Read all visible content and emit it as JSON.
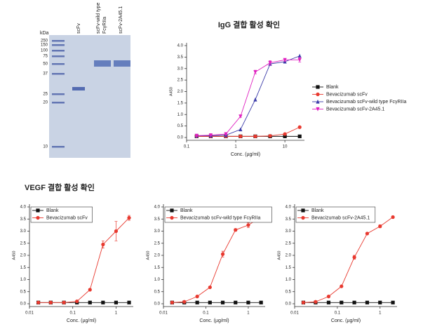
{
  "section_title": "VEGF 결합 활성 확인",
  "gel": {
    "unit": "kDa",
    "markers": [
      250,
      150,
      100,
      75,
      50,
      37,
      25,
      20,
      10
    ],
    "lanes": [
      [
        "scFv"
      ],
      [
        "scFv-wild type",
        "FcγRIIa"
      ],
      [
        "scFv-2A45.1"
      ]
    ]
  },
  "chart_data": [
    {
      "type": "line",
      "title": "IgG 결합 활성 확인",
      "x_label": "Conc. (µg/ml)",
      "y_label": "A450",
      "xscale": "log",
      "xlim": [
        0.1,
        25
      ],
      "ylim": [
        0,
        4
      ],
      "xticks": [
        0.1,
        1,
        10
      ],
      "yticks": [
        {
          "value": 0,
          "label": "0.0"
        },
        {
          "value": 0.5,
          "label": "0.5"
        },
        {
          "value": 1,
          "label": "1.0"
        },
        {
          "value": 1.5,
          "label": "1.5"
        },
        {
          "value": 2,
          "label": "2.0"
        },
        {
          "value": 2.5,
          "label": "2.5"
        },
        {
          "value": 3,
          "label": "3.0"
        },
        {
          "value": 3.5,
          "label": "3.5"
        },
        {
          "value": 4,
          "label": "4.0"
        }
      ],
      "legend": "right",
      "x": [
        0.16,
        0.31,
        0.63,
        1.25,
        2.5,
        5,
        10,
        20
      ],
      "series": [
        {
          "name": "Blank",
          "color": "#111111",
          "marker": "square",
          "values": [
            0.05,
            0.05,
            0.05,
            0.05,
            0.05,
            0.05,
            0.05,
            0.05
          ]
        },
        {
          "name": "Bevacizumab scFv",
          "color": "#e8392f",
          "marker": "circle",
          "values": [
            0.05,
            0.05,
            0.05,
            0.05,
            0.05,
            0.07,
            0.15,
            0.45
          ]
        },
        {
          "name": "Bevacizumab scFv-wild type FcγRIIa",
          "color": "#3a3aa8",
          "marker": "triangle-up",
          "values": [
            0.07,
            0.08,
            0.1,
            0.35,
            1.65,
            3.2,
            3.3,
            3.55
          ]
        },
        {
          "name": "Bevacizumab scFv-2A45.1",
          "color": "#e020c0",
          "marker": "triangle-down",
          "values": [
            0.08,
            0.1,
            0.15,
            0.92,
            2.85,
            3.25,
            3.38,
            3.38
          ],
          "errors": [
            0.02,
            0.02,
            0.02,
            0.04,
            0.08,
            0.1,
            0.06,
            0.1
          ]
        }
      ]
    },
    {
      "type": "line",
      "x_label": "Conc. (µg/ml)",
      "y_label": "A450",
      "xscale": "log",
      "xlim": [
        0.01,
        2.5
      ],
      "ylim": [
        0,
        4
      ],
      "xticks": [
        0.01,
        0.1,
        1
      ],
      "yticks": [
        {
          "value": 0,
          "label": "0.0"
        },
        {
          "value": 0.5,
          "label": "0.5"
        },
        {
          "value": 1,
          "label": "1.0"
        },
        {
          "value": 1.5,
          "label": "1.5"
        },
        {
          "value": 2,
          "label": "2.0"
        },
        {
          "value": 2.5,
          "label": "2.5"
        },
        {
          "value": 3,
          "label": "3.0"
        },
        {
          "value": 3.5,
          "label": "3.5"
        },
        {
          "value": 4,
          "label": "4.0"
        }
      ],
      "legend": "upper left",
      "x": [
        0.016,
        0.031,
        0.0625,
        0.125,
        0.25,
        0.5,
        1,
        2
      ],
      "series": [
        {
          "name": "Blank",
          "color": "#111111",
          "marker": "square",
          "values": [
            0.05,
            0.05,
            0.05,
            0.05,
            0.05,
            0.05,
            0.05,
            0.05
          ]
        },
        {
          "name": "Bevacizumab scFv",
          "color": "#e8392f",
          "marker": "circle",
          "values": [
            0.05,
            0.05,
            0.05,
            0.1,
            0.58,
            2.45,
            3.0,
            3.55
          ],
          "errors": [
            0.02,
            0.02,
            0.02,
            0.03,
            0.03,
            0.15,
            0.4,
            0.1
          ]
        }
      ]
    },
    {
      "type": "line",
      "x_label": "Conc. (µg/ml)",
      "y_label": "A450",
      "xscale": "log",
      "xlim": [
        0.01,
        2.5
      ],
      "ylim": [
        0,
        4
      ],
      "xticks": [
        0.01,
        0.1,
        1
      ],
      "yticks": [
        {
          "value": 0,
          "label": "0.0"
        },
        {
          "value": 0.5,
          "label": "0.5"
        },
        {
          "value": 1,
          "label": "1.0"
        },
        {
          "value": 1.5,
          "label": "1.5"
        },
        {
          "value": 2,
          "label": "2.0"
        },
        {
          "value": 2.5,
          "label": "2.5"
        },
        {
          "value": 3,
          "label": "3.0"
        },
        {
          "value": 3.5,
          "label": "3.5"
        },
        {
          "value": 4,
          "label": "4.0"
        }
      ],
      "legend": "upper left",
      "x": [
        0.016,
        0.031,
        0.0625,
        0.125,
        0.25,
        0.5,
        1,
        2
      ],
      "series": [
        {
          "name": "Blank",
          "color": "#111111",
          "marker": "square",
          "values": [
            0.05,
            0.05,
            0.05,
            0.05,
            0.05,
            0.05,
            0.05,
            0.05
          ]
        },
        {
          "name": "Bevacizumab scFv-wild type FcγRIIa",
          "color": "#e8392f",
          "marker": "circle",
          "values": [
            0.05,
            0.08,
            0.3,
            0.68,
            2.05,
            3.05,
            3.25,
            3.58
          ],
          "errors": [
            0.02,
            0.02,
            0.03,
            0.03,
            0.12,
            0.05,
            0.1,
            0.05
          ]
        }
      ]
    },
    {
      "type": "line",
      "x_label": "Conc. (µg/ml)",
      "y_label": "A450",
      "xscale": "log",
      "xlim": [
        0.01,
        2.5
      ],
      "ylim": [
        0,
        4
      ],
      "xticks": [
        0.01,
        0.1,
        1
      ],
      "yticks": [
        {
          "value": 0,
          "label": "0.0"
        },
        {
          "value": 0.5,
          "label": "0.5"
        },
        {
          "value": 1,
          "label": "1.0"
        },
        {
          "value": 1.5,
          "label": "1.5"
        },
        {
          "value": 2,
          "label": "2.0"
        },
        {
          "value": 2.5,
          "label": "2.5"
        },
        {
          "value": 3,
          "label": "3.0"
        },
        {
          "value": 3.5,
          "label": "3.5"
        },
        {
          "value": 4,
          "label": "4.0"
        }
      ],
      "legend": "upper left",
      "x": [
        0.016,
        0.031,
        0.0625,
        0.125,
        0.25,
        0.5,
        1,
        2
      ],
      "series": [
        {
          "name": "Blank",
          "color": "#111111",
          "marker": "square",
          "values": [
            0.05,
            0.05,
            0.05,
            0.05,
            0.05,
            0.05,
            0.05,
            0.05
          ]
        },
        {
          "name": "Bevacizumab scFv-2A45.1",
          "color": "#e8392f",
          "marker": "circle",
          "values": [
            0.05,
            0.08,
            0.3,
            0.72,
            1.92,
            2.9,
            3.2,
            3.58
          ],
          "errors": [
            0.02,
            0.02,
            0.03,
            0.03,
            0.08,
            0.05,
            0.06,
            0.04
          ]
        }
      ]
    }
  ]
}
